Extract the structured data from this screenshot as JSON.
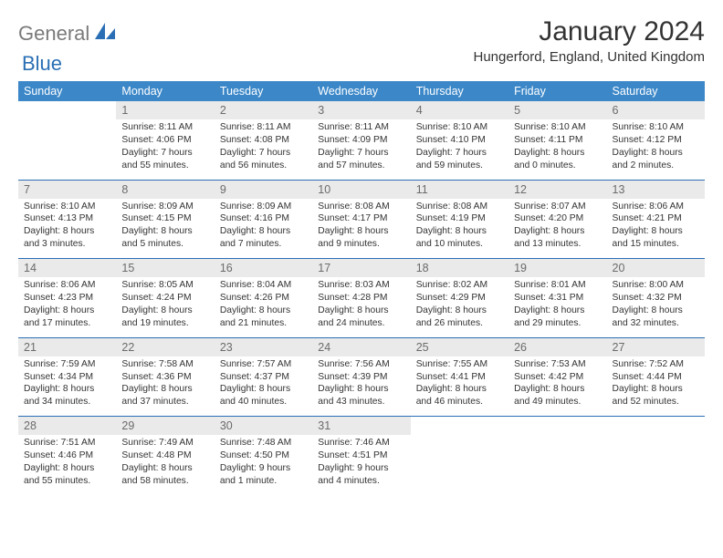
{
  "brand": {
    "word1": "General",
    "word2": "Blue"
  },
  "title": "January 2024",
  "location": "Hungerford, England, United Kingdom",
  "colors": {
    "header_bg": "#3b87c8",
    "border": "#2a6fb5",
    "daynum_bg": "#eaeaea",
    "daynum_fg": "#6b6b6b",
    "brand_gray": "#7a7a7a",
    "brand_blue": "#2a6fb5",
    "text": "#333333",
    "page_bg": "#ffffff"
  },
  "typography": {
    "title_fontsize": 30,
    "location_fontsize": 15,
    "dow_fontsize": 12.5,
    "daynum_fontsize": 12.5,
    "detail_fontsize": 10.3
  },
  "dow": [
    "Sunday",
    "Monday",
    "Tuesday",
    "Wednesday",
    "Thursday",
    "Friday",
    "Saturday"
  ],
  "weeks": [
    [
      {
        "num": "",
        "lines": [
          "",
          "",
          "",
          ""
        ]
      },
      {
        "num": "1",
        "lines": [
          "Sunrise: 8:11 AM",
          "Sunset: 4:06 PM",
          "Daylight: 7 hours",
          "and 55 minutes."
        ]
      },
      {
        "num": "2",
        "lines": [
          "Sunrise: 8:11 AM",
          "Sunset: 4:08 PM",
          "Daylight: 7 hours",
          "and 56 minutes."
        ]
      },
      {
        "num": "3",
        "lines": [
          "Sunrise: 8:11 AM",
          "Sunset: 4:09 PM",
          "Daylight: 7 hours",
          "and 57 minutes."
        ]
      },
      {
        "num": "4",
        "lines": [
          "Sunrise: 8:10 AM",
          "Sunset: 4:10 PM",
          "Daylight: 7 hours",
          "and 59 minutes."
        ]
      },
      {
        "num": "5",
        "lines": [
          "Sunrise: 8:10 AM",
          "Sunset: 4:11 PM",
          "Daylight: 8 hours",
          "and 0 minutes."
        ]
      },
      {
        "num": "6",
        "lines": [
          "Sunrise: 8:10 AM",
          "Sunset: 4:12 PM",
          "Daylight: 8 hours",
          "and 2 minutes."
        ]
      }
    ],
    [
      {
        "num": "7",
        "lines": [
          "Sunrise: 8:10 AM",
          "Sunset: 4:13 PM",
          "Daylight: 8 hours",
          "and 3 minutes."
        ]
      },
      {
        "num": "8",
        "lines": [
          "Sunrise: 8:09 AM",
          "Sunset: 4:15 PM",
          "Daylight: 8 hours",
          "and 5 minutes."
        ]
      },
      {
        "num": "9",
        "lines": [
          "Sunrise: 8:09 AM",
          "Sunset: 4:16 PM",
          "Daylight: 8 hours",
          "and 7 minutes."
        ]
      },
      {
        "num": "10",
        "lines": [
          "Sunrise: 8:08 AM",
          "Sunset: 4:17 PM",
          "Daylight: 8 hours",
          "and 9 minutes."
        ]
      },
      {
        "num": "11",
        "lines": [
          "Sunrise: 8:08 AM",
          "Sunset: 4:19 PM",
          "Daylight: 8 hours",
          "and 10 minutes."
        ]
      },
      {
        "num": "12",
        "lines": [
          "Sunrise: 8:07 AM",
          "Sunset: 4:20 PM",
          "Daylight: 8 hours",
          "and 13 minutes."
        ]
      },
      {
        "num": "13",
        "lines": [
          "Sunrise: 8:06 AM",
          "Sunset: 4:21 PM",
          "Daylight: 8 hours",
          "and 15 minutes."
        ]
      }
    ],
    [
      {
        "num": "14",
        "lines": [
          "Sunrise: 8:06 AM",
          "Sunset: 4:23 PM",
          "Daylight: 8 hours",
          "and 17 minutes."
        ]
      },
      {
        "num": "15",
        "lines": [
          "Sunrise: 8:05 AM",
          "Sunset: 4:24 PM",
          "Daylight: 8 hours",
          "and 19 minutes."
        ]
      },
      {
        "num": "16",
        "lines": [
          "Sunrise: 8:04 AM",
          "Sunset: 4:26 PM",
          "Daylight: 8 hours",
          "and 21 minutes."
        ]
      },
      {
        "num": "17",
        "lines": [
          "Sunrise: 8:03 AM",
          "Sunset: 4:28 PM",
          "Daylight: 8 hours",
          "and 24 minutes."
        ]
      },
      {
        "num": "18",
        "lines": [
          "Sunrise: 8:02 AM",
          "Sunset: 4:29 PM",
          "Daylight: 8 hours",
          "and 26 minutes."
        ]
      },
      {
        "num": "19",
        "lines": [
          "Sunrise: 8:01 AM",
          "Sunset: 4:31 PM",
          "Daylight: 8 hours",
          "and 29 minutes."
        ]
      },
      {
        "num": "20",
        "lines": [
          "Sunrise: 8:00 AM",
          "Sunset: 4:32 PM",
          "Daylight: 8 hours",
          "and 32 minutes."
        ]
      }
    ],
    [
      {
        "num": "21",
        "lines": [
          "Sunrise: 7:59 AM",
          "Sunset: 4:34 PM",
          "Daylight: 8 hours",
          "and 34 minutes."
        ]
      },
      {
        "num": "22",
        "lines": [
          "Sunrise: 7:58 AM",
          "Sunset: 4:36 PM",
          "Daylight: 8 hours",
          "and 37 minutes."
        ]
      },
      {
        "num": "23",
        "lines": [
          "Sunrise: 7:57 AM",
          "Sunset: 4:37 PM",
          "Daylight: 8 hours",
          "and 40 minutes."
        ]
      },
      {
        "num": "24",
        "lines": [
          "Sunrise: 7:56 AM",
          "Sunset: 4:39 PM",
          "Daylight: 8 hours",
          "and 43 minutes."
        ]
      },
      {
        "num": "25",
        "lines": [
          "Sunrise: 7:55 AM",
          "Sunset: 4:41 PM",
          "Daylight: 8 hours",
          "and 46 minutes."
        ]
      },
      {
        "num": "26",
        "lines": [
          "Sunrise: 7:53 AM",
          "Sunset: 4:42 PM",
          "Daylight: 8 hours",
          "and 49 minutes."
        ]
      },
      {
        "num": "27",
        "lines": [
          "Sunrise: 7:52 AM",
          "Sunset: 4:44 PM",
          "Daylight: 8 hours",
          "and 52 minutes."
        ]
      }
    ],
    [
      {
        "num": "28",
        "lines": [
          "Sunrise: 7:51 AM",
          "Sunset: 4:46 PM",
          "Daylight: 8 hours",
          "and 55 minutes."
        ]
      },
      {
        "num": "29",
        "lines": [
          "Sunrise: 7:49 AM",
          "Sunset: 4:48 PM",
          "Daylight: 8 hours",
          "and 58 minutes."
        ]
      },
      {
        "num": "30",
        "lines": [
          "Sunrise: 7:48 AM",
          "Sunset: 4:50 PM",
          "Daylight: 9 hours",
          "and 1 minute."
        ]
      },
      {
        "num": "31",
        "lines": [
          "Sunrise: 7:46 AM",
          "Sunset: 4:51 PM",
          "Daylight: 9 hours",
          "and 4 minutes."
        ]
      },
      {
        "num": "",
        "lines": [
          "",
          "",
          "",
          ""
        ]
      },
      {
        "num": "",
        "lines": [
          "",
          "",
          "",
          ""
        ]
      },
      {
        "num": "",
        "lines": [
          "",
          "",
          "",
          ""
        ]
      }
    ]
  ]
}
